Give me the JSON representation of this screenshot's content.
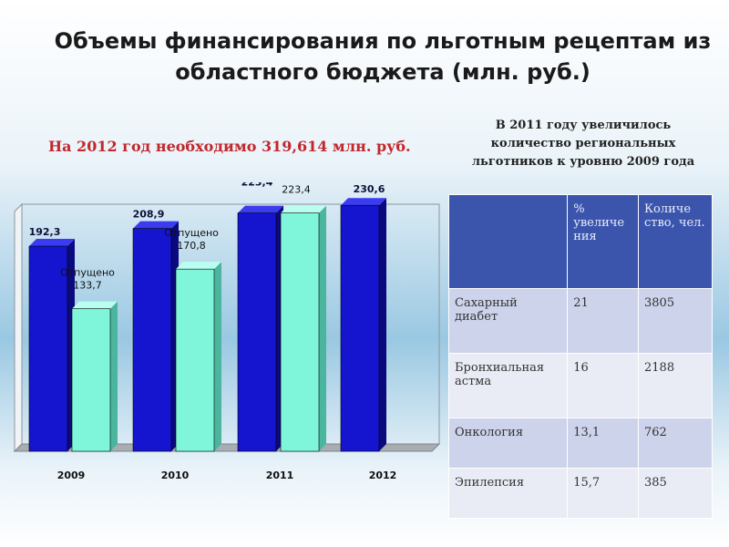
{
  "title_line1": "Объемы финансирования по льготным рецептам из",
  "title_line2": "областного бюджета (млн. руб.)",
  "need_text": "На 2012 год необходимо 319,614 млн. руб.",
  "note": {
    "line1": "В 2011 году увеличилось",
    "line2": "количество региональных",
    "line3": "льготников к уровню 2009 года"
  },
  "chart_data": {
    "type": "bar",
    "categories": [
      "2009",
      "2010",
      "2011",
      "2012"
    ],
    "series": [
      {
        "name": "",
        "values": [
          192.3,
          208.9,
          223.4,
          230.6
        ],
        "labels": [
          "192,3",
          "208,9",
          "223,4",
          "230,6"
        ],
        "color": "#1515cf"
      },
      {
        "name": "Отпущено",
        "values": [
          133.7,
          170.8,
          223.4,
          null
        ],
        "labels": [
          "133,7",
          "170,8",
          "223,4",
          ""
        ],
        "color": "#7ff5da"
      }
    ],
    "title": "",
    "xlabel": "",
    "ylabel": "",
    "ylim": [
      0,
      250
    ],
    "grid": false,
    "legend": "none"
  },
  "table": {
    "headers": [
      "",
      "% увеличе ния",
      "Количе ство, чел."
    ],
    "rows": [
      [
        "Сахарный диабет",
        "21",
        "3805"
      ],
      [
        "Бронхиальная астма",
        "16",
        "2188"
      ],
      [
        "Онкология",
        "13,1",
        "762"
      ],
      [
        "Эпилепсия",
        "15,7",
        "385"
      ]
    ]
  }
}
